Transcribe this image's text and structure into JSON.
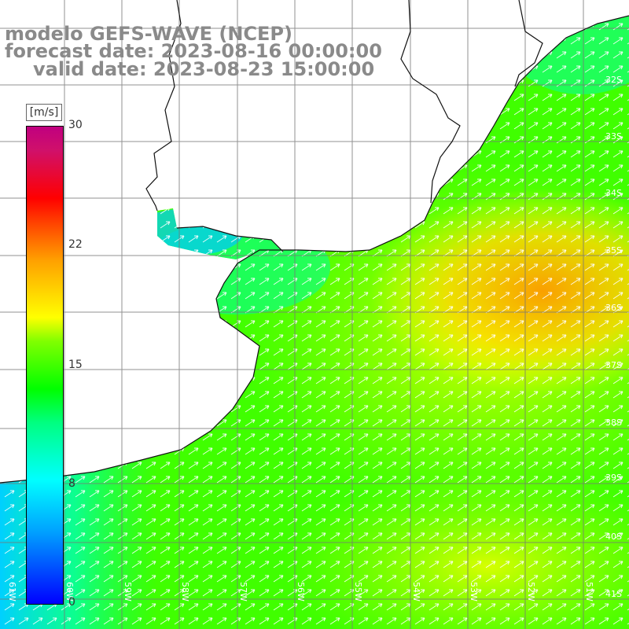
{
  "title": {
    "line1": "modelo GEFS-WAVE (NCEP)",
    "line2": "forecast date: 2023-08-16 00:00:00",
    "line3": "valid date: 2023-08-23 15:00:00"
  },
  "colorbar": {
    "units": "[m/s]",
    "ticks": [
      "30",
      "22",
      "15",
      "8",
      "0"
    ],
    "min": 0,
    "max": 30,
    "colors": [
      "#0000ff",
      "#00ffff",
      "#00ff00",
      "#ffff00",
      "#ff8000",
      "#ff0000",
      "#c00080"
    ]
  },
  "lat_labels": [
    "33S",
    "34S",
    "35S",
    "36S",
    "37S",
    "38S",
    "39S",
    "40S"
  ],
  "lon_labels": [
    "61W",
    "60W",
    "59W",
    "58W",
    "57W",
    "56W",
    "55W",
    "54W",
    "53W",
    "52W",
    "51W"
  ],
  "field": {
    "variable": "wind speed and direction",
    "wind_direction": "from southwest (arrows pointing northeast)",
    "max_region": "offshore around 36S 51W, about 20 m/s",
    "coastal_min": "about 8 m/s"
  }
}
